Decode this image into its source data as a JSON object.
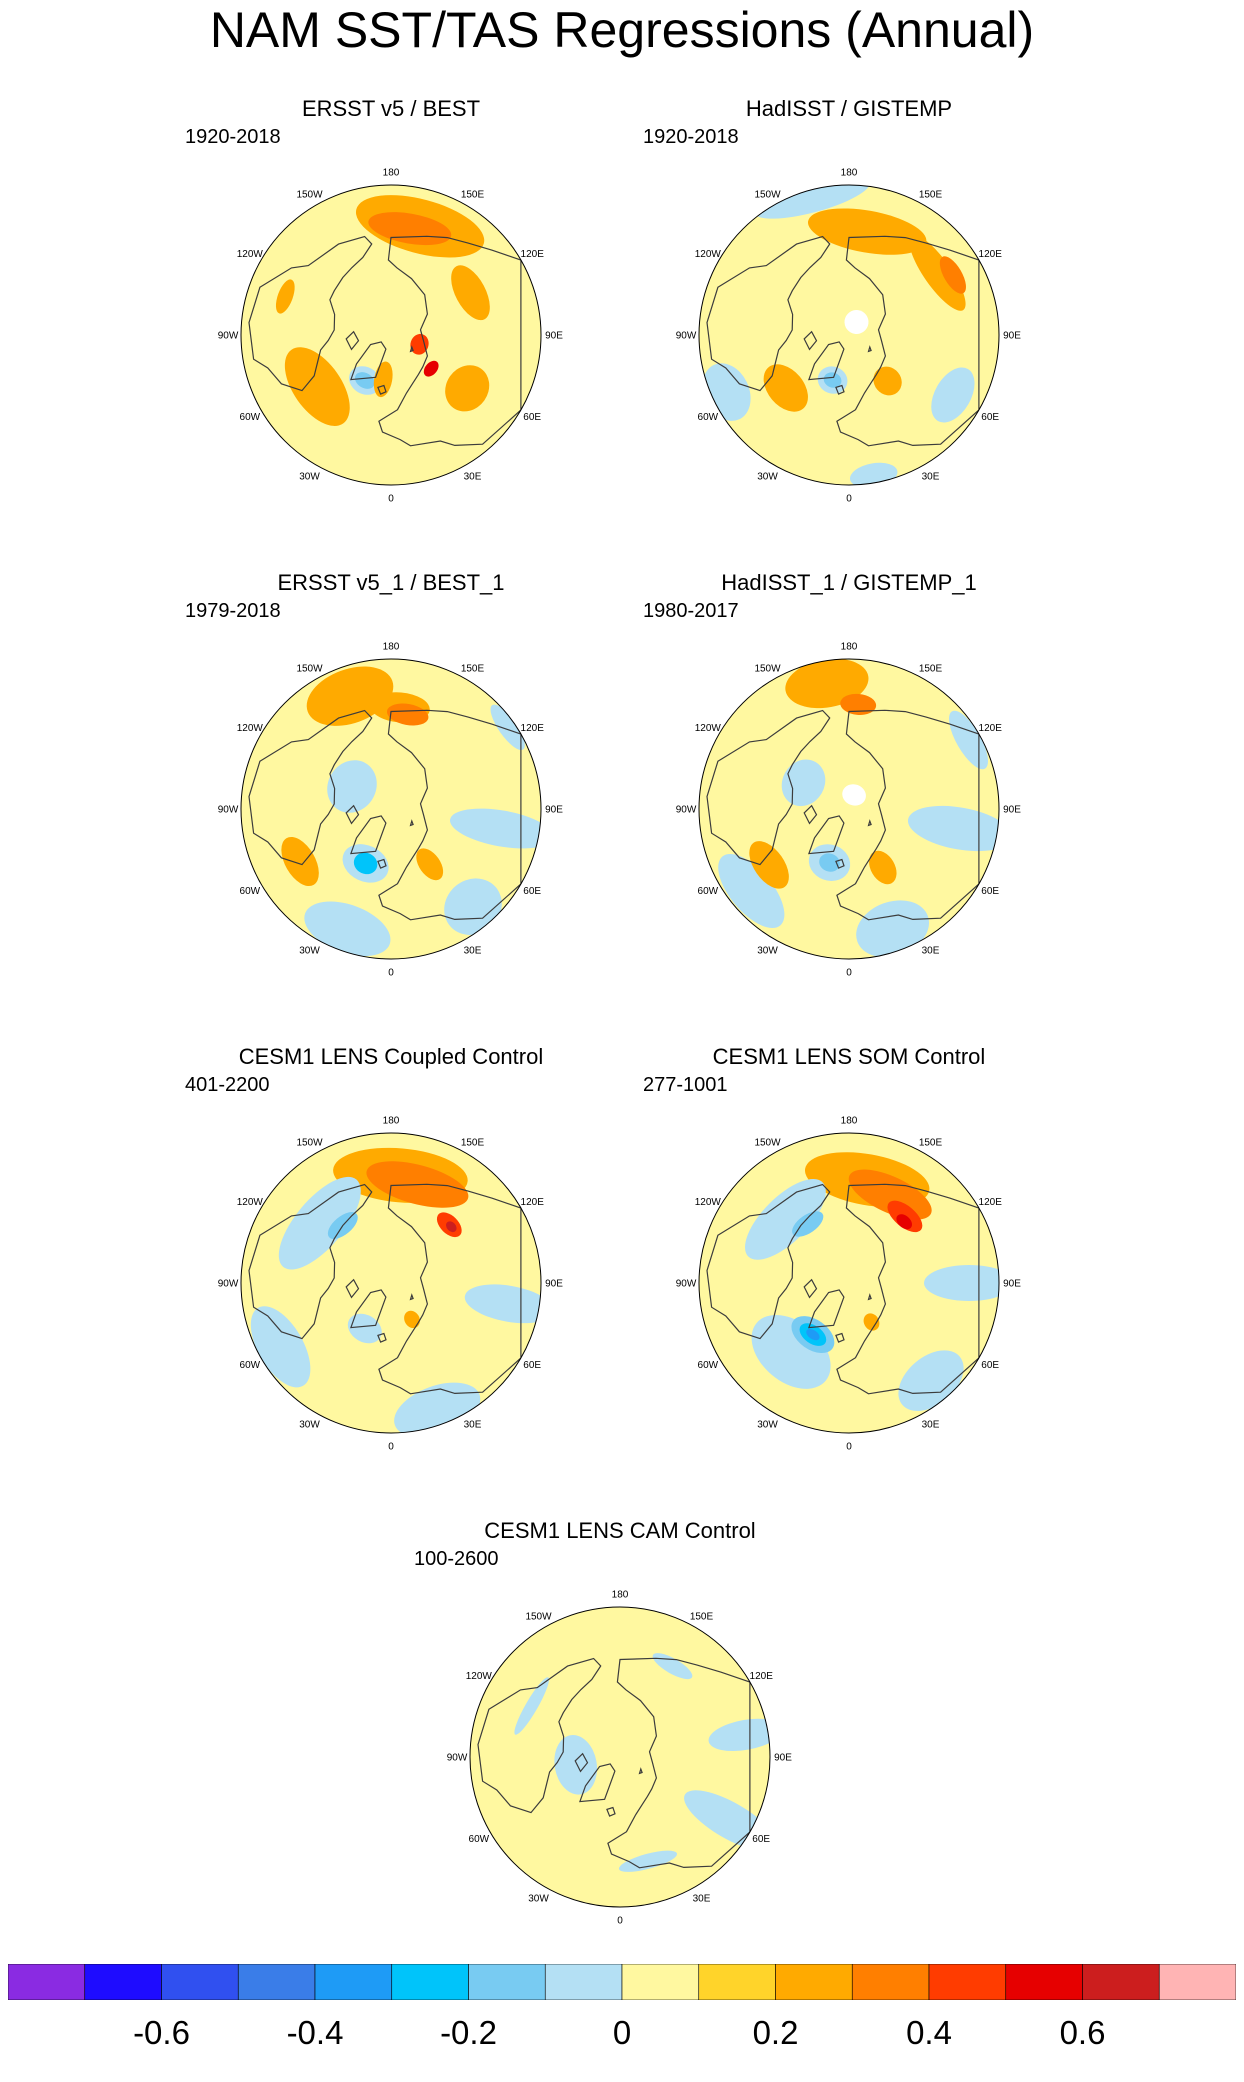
{
  "title": "NAM SST/TAS Regressions (Annual)",
  "panels": [
    {
      "title": "ERSST v5 / BEST",
      "period": "1920-2018",
      "blobs": [
        {
          "lon": 165,
          "dist": 0.75,
          "rx": 0.44,
          "ry": 0.18,
          "level": 0.2
        },
        {
          "lon": 170,
          "dist": 0.72,
          "rx": 0.28,
          "ry": 0.1,
          "level": 0.3
        },
        {
          "lon": 118,
          "dist": 0.6,
          "rx": 0.2,
          "ry": 0.1,
          "level": 0.2
        },
        {
          "lon": 55,
          "dist": 0.62,
          "rx": 0.16,
          "ry": 0.14,
          "level": 0.2
        },
        {
          "lon": 72,
          "dist": 0.2,
          "rx": 0.07,
          "ry": 0.06,
          "level": 0.4
        },
        {
          "lon": 50,
          "dist": 0.35,
          "rx": 0.06,
          "ry": 0.04,
          "level": 0.5
        },
        {
          "lon": -55,
          "dist": 0.6,
          "rx": 0.3,
          "ry": 0.16,
          "level": 0.2
        },
        {
          "lon": -30,
          "dist": 0.35,
          "rx": 0.11,
          "ry": 0.09,
          "level": -0.1
        },
        {
          "lon": -30,
          "dist": 0.35,
          "rx": 0.07,
          "ry": 0.05,
          "level": -0.2
        },
        {
          "lon": -10,
          "dist": 0.3,
          "rx": 0.06,
          "ry": 0.12,
          "level": 0.2
        },
        {
          "lon": -110,
          "dist": 0.75,
          "rx": 0.12,
          "ry": 0.05,
          "level": 0.2
        }
      ]
    },
    {
      "title": "HadISST / GISTEMP",
      "period": "1920-2018",
      "blobs": [
        {
          "lon": 170,
          "dist": 0.7,
          "rx": 0.4,
          "ry": 0.14,
          "level": 0.2
        },
        {
          "lon": 125,
          "dist": 0.72,
          "rx": 0.3,
          "ry": 0.09,
          "level": 0.2
        },
        {
          "lon": 120,
          "dist": 0.8,
          "rx": 0.14,
          "ry": 0.06,
          "level": 0.3
        },
        {
          "lon": -165,
          "dist": 0.95,
          "rx": 0.4,
          "ry": 0.1,
          "level": -0.1
        },
        {
          "lon": -65,
          "dist": 0.9,
          "rx": 0.2,
          "ry": 0.15,
          "level": -0.1
        },
        {
          "lon": -50,
          "dist": 0.55,
          "rx": 0.18,
          "ry": 0.12,
          "level": 0.2
        },
        {
          "lon": -20,
          "dist": 0.32,
          "rx": 0.1,
          "ry": 0.09,
          "level": -0.1
        },
        {
          "lon": -20,
          "dist": 0.32,
          "rx": 0.06,
          "ry": 0.05,
          "level": -0.2
        },
        {
          "lon": 40,
          "dist": 0.4,
          "rx": 0.09,
          "ry": 0.1,
          "level": 0.2
        },
        {
          "lon": 60,
          "dist": 0.8,
          "rx": 0.2,
          "ry": 0.12,
          "level": -0.1
        },
        {
          "lon": 10,
          "dist": 0.95,
          "rx": 0.16,
          "ry": 0.08,
          "level": -0.1
        },
        {
          "lon": 150,
          "dist": 0.1,
          "rx": 0.08,
          "ry": 0.08,
          "level": 0.0,
          "color": "#ffffff"
        }
      ]
    },
    {
      "title": "ERSST v5_1 / BEST_1",
      "period": "1979-2018",
      "blobs": [
        {
          "lon": -160,
          "dist": 0.8,
          "rx": 0.3,
          "ry": 0.18,
          "level": 0.2
        },
        {
          "lon": 175,
          "dist": 0.68,
          "rx": 0.2,
          "ry": 0.1,
          "level": 0.2
        },
        {
          "lon": 170,
          "dist": 0.64,
          "rx": 0.14,
          "ry": 0.07,
          "level": 0.3
        },
        {
          "lon": 125,
          "dist": 0.95,
          "rx": 0.18,
          "ry": 0.06,
          "level": -0.1
        },
        {
          "lon": 80,
          "dist": 0.75,
          "rx": 0.12,
          "ry": 0.35,
          "level": -0.1
        },
        {
          "lon": 40,
          "dist": 0.85,
          "rx": 0.2,
          "ry": 0.18,
          "level": -0.1
        },
        {
          "lon": -20,
          "dist": 0.85,
          "rx": 0.3,
          "ry": 0.16,
          "level": -0.1
        },
        {
          "lon": -60,
          "dist": 0.7,
          "rx": 0.18,
          "ry": 0.1,
          "level": 0.2
        },
        {
          "lon": -25,
          "dist": 0.4,
          "rx": 0.16,
          "ry": 0.12,
          "level": -0.1
        },
        {
          "lon": -25,
          "dist": 0.4,
          "rx": 0.08,
          "ry": 0.07,
          "level": -0.3
        },
        {
          "lon": 35,
          "dist": 0.45,
          "rx": 0.07,
          "ry": 0.12,
          "level": 0.2
        },
        {
          "lon": -120,
          "dist": 0.3,
          "rx": 0.18,
          "ry": 0.16,
          "level": -0.1
        }
      ]
    },
    {
      "title": "HadISST_1 / GISTEMP_1",
      "period": "1980-2017",
      "blobs": [
        {
          "lon": -170,
          "dist": 0.85,
          "rx": 0.28,
          "ry": 0.16,
          "level": 0.2
        },
        {
          "lon": 175,
          "dist": 0.7,
          "rx": 0.12,
          "ry": 0.07,
          "level": 0.3
        },
        {
          "lon": 120,
          "dist": 0.92,
          "rx": 0.22,
          "ry": 0.08,
          "level": -0.1
        },
        {
          "lon": 80,
          "dist": 0.75,
          "rx": 0.14,
          "ry": 0.35,
          "level": -0.1
        },
        {
          "lon": 20,
          "dist": 0.85,
          "rx": 0.25,
          "ry": 0.18,
          "level": -0.1
        },
        {
          "lon": -50,
          "dist": 0.85,
          "rx": 0.3,
          "ry": 0.14,
          "level": -0.1
        },
        {
          "lon": -55,
          "dist": 0.65,
          "rx": 0.18,
          "ry": 0.1,
          "level": 0.2
        },
        {
          "lon": -20,
          "dist": 0.38,
          "rx": 0.14,
          "ry": 0.12,
          "level": -0.1
        },
        {
          "lon": -20,
          "dist": 0.38,
          "rx": 0.07,
          "ry": 0.06,
          "level": -0.2
        },
        {
          "lon": 30,
          "dist": 0.45,
          "rx": 0.08,
          "ry": 0.12,
          "level": 0.2
        },
        {
          "lon": -120,
          "dist": 0.35,
          "rx": 0.16,
          "ry": 0.14,
          "level": -0.1
        },
        {
          "lon": 160,
          "dist": 0.1,
          "rx": 0.08,
          "ry": 0.07,
          "level": 0.0,
          "color": "#ffffff"
        }
      ]
    },
    {
      "title": "CESM1 LENS Coupled Control",
      "period": "401-2200",
      "blobs": [
        {
          "lon": 175,
          "dist": 0.72,
          "rx": 0.45,
          "ry": 0.18,
          "level": 0.2
        },
        {
          "lon": 165,
          "dist": 0.68,
          "rx": 0.35,
          "ry": 0.13,
          "level": 0.3
        },
        {
          "lon": 135,
          "dist": 0.55,
          "rx": 0.1,
          "ry": 0.06,
          "level": 0.4
        },
        {
          "lon": 133,
          "dist": 0.55,
          "rx": 0.04,
          "ry": 0.03,
          "level": 0.6
        },
        {
          "lon": -130,
          "dist": 0.62,
          "rx": 0.38,
          "ry": 0.16,
          "level": -0.1
        },
        {
          "lon": -140,
          "dist": 0.5,
          "rx": 0.12,
          "ry": 0.06,
          "level": -0.2
        },
        {
          "lon": -60,
          "dist": 0.85,
          "rx": 0.3,
          "ry": 0.15,
          "level": -0.1
        },
        {
          "lon": -30,
          "dist": 0.35,
          "rx": 0.12,
          "ry": 0.09,
          "level": -0.1
        },
        {
          "lon": 20,
          "dist": 0.9,
          "rx": 0.3,
          "ry": 0.16,
          "level": -0.1
        },
        {
          "lon": 80,
          "dist": 0.8,
          "rx": 0.12,
          "ry": 0.3,
          "level": -0.1
        },
        {
          "lon": 30,
          "dist": 0.28,
          "rx": 0.05,
          "ry": 0.06,
          "level": 0.2
        }
      ]
    },
    {
      "title": "CESM1 LENS SOM Control",
      "period": "277-1001",
      "blobs": [
        {
          "lon": 170,
          "dist": 0.7,
          "rx": 0.42,
          "ry": 0.17,
          "level": 0.2
        },
        {
          "lon": 155,
          "dist": 0.65,
          "rx": 0.3,
          "ry": 0.12,
          "level": 0.3
        },
        {
          "lon": 140,
          "dist": 0.58,
          "rx": 0.14,
          "ry": 0.07,
          "level": 0.4
        },
        {
          "lon": 138,
          "dist": 0.55,
          "rx": 0.06,
          "ry": 0.04,
          "level": 0.5
        },
        {
          "lon": -135,
          "dist": 0.6,
          "rx": 0.35,
          "ry": 0.15,
          "level": -0.1
        },
        {
          "lon": -145,
          "dist": 0.48,
          "rx": 0.12,
          "ry": 0.06,
          "level": -0.2
        },
        {
          "lon": -40,
          "dist": 0.6,
          "rx": 0.3,
          "ry": 0.2,
          "level": -0.1
        },
        {
          "lon": -35,
          "dist": 0.42,
          "rx": 0.16,
          "ry": 0.1,
          "level": -0.2
        },
        {
          "lon": -35,
          "dist": 0.42,
          "rx": 0.1,
          "ry": 0.06,
          "level": -0.3
        },
        {
          "lon": -35,
          "dist": 0.42,
          "rx": 0.05,
          "ry": 0.03,
          "level": -0.4
        },
        {
          "lon": 40,
          "dist": 0.85,
          "rx": 0.25,
          "ry": 0.16,
          "level": -0.1
        },
        {
          "lon": 90,
          "dist": 0.8,
          "rx": 0.12,
          "ry": 0.3,
          "level": -0.1
        },
        {
          "lon": 30,
          "dist": 0.3,
          "rx": 0.05,
          "ry": 0.06,
          "level": 0.2
        }
      ]
    },
    {
      "title": "CESM1 LENS CAM Control",
      "period": "100-2600",
      "blobs": [
        {
          "lon": 60,
          "dist": 0.85,
          "rx": 0.12,
          "ry": 0.35,
          "level": -0.1
        },
        {
          "lon": 100,
          "dist": 0.85,
          "rx": 0.1,
          "ry": 0.25,
          "level": -0.1
        },
        {
          "lon": -80,
          "dist": 0.3,
          "rx": 0.2,
          "ry": 0.14,
          "level": -0.1
        },
        {
          "lon": -120,
          "dist": 0.68,
          "rx": 0.22,
          "ry": 0.04,
          "level": -0.1
        },
        {
          "lon": 15,
          "dist": 0.72,
          "rx": 0.2,
          "ry": 0.05,
          "level": -0.1
        },
        {
          "lon": 150,
          "dist": 0.7,
          "rx": 0.15,
          "ry": 0.05,
          "level": -0.1
        }
      ]
    }
  ],
  "lon_labels": [
    {
      "lon": 180,
      "text": "180"
    },
    {
      "lon": 150,
      "text": "150E"
    },
    {
      "lon": 120,
      "text": "120E"
    },
    {
      "lon": 90,
      "text": "90E"
    },
    {
      "lon": 60,
      "text": "60E"
    },
    {
      "lon": 30,
      "text": "30E"
    },
    {
      "lon": 0,
      "text": "0"
    },
    {
      "lon": -30,
      "text": "30W"
    },
    {
      "lon": -60,
      "text": "60W"
    },
    {
      "lon": -90,
      "text": "90W"
    },
    {
      "lon": -120,
      "text": "120W"
    },
    {
      "lon": -150,
      "text": "150W"
    }
  ],
  "colorbar": {
    "colors": [
      "#8a2be2",
      "#1e0cff",
      "#3050f0",
      "#3a7de8",
      "#1e9bf6",
      "#00c4fa",
      "#78cbf2",
      "#b4e0f4",
      "#fff8a0",
      "#ffd42a",
      "#ffaa00",
      "#ff7f00",
      "#ff3c00",
      "#e60000",
      "#cc1e1e",
      "#ffb4b4"
    ],
    "levels": [
      -0.7,
      -0.6,
      -0.5,
      -0.4,
      -0.3,
      -0.2,
      -0.1,
      0,
      0.1,
      0.2,
      0.3,
      0.4,
      0.5,
      0.6,
      0.7
    ],
    "tick_labels": [
      "-0.6",
      "-0.4",
      "-0.2",
      "0",
      "0.2",
      "0.4",
      "0.6"
    ],
    "tick_values": [
      -0.6,
      -0.4,
      -0.2,
      0,
      0.2,
      0.4,
      0.6
    ]
  }
}
